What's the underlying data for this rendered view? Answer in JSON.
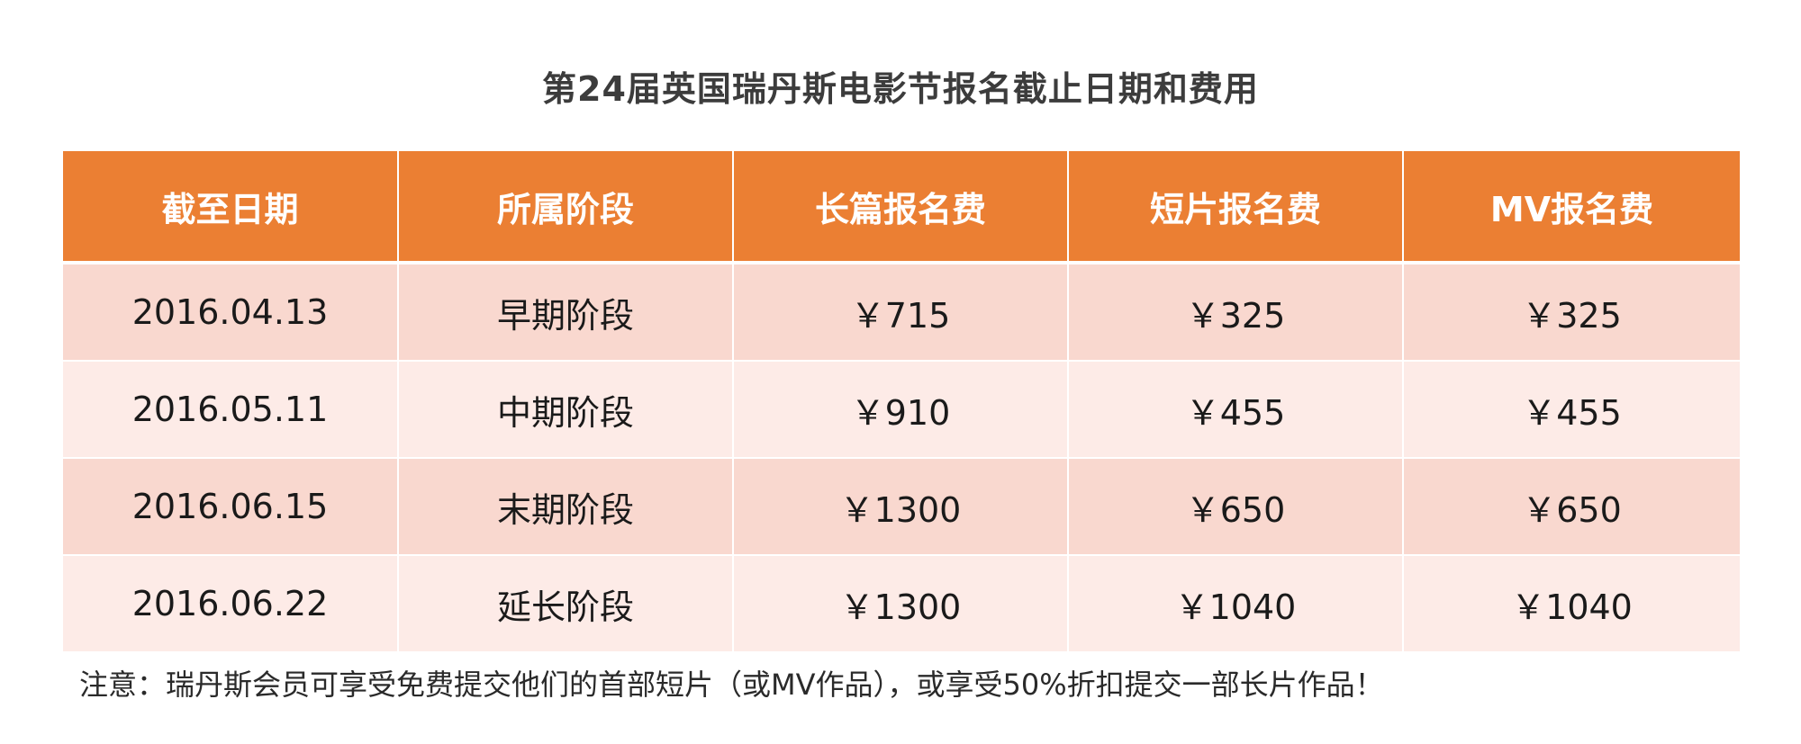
{
  "title": "第24届英国瑞丹斯电影节报名截止日期和费用",
  "table": {
    "headers": [
      "截至日期",
      "所属阶段",
      "长篇报名费",
      "短片报名费",
      "MV报名费"
    ],
    "rows": [
      [
        "2016.04.13",
        "早期阶段",
        "￥715",
        "￥325",
        "￥325"
      ],
      [
        "2016.05.11",
        "中期阶段",
        "￥910",
        "￥455",
        "￥455"
      ],
      [
        "2016.06.15",
        "末期阶段",
        "￥1300",
        "￥650",
        "￥650"
      ],
      [
        "2016.06.22",
        "延长阶段",
        "￥1300",
        "￥1040",
        "￥1040"
      ]
    ]
  },
  "note": "注意：瑞丹斯会员可享受免费提交他们的首部短片（或MV作品），或享受50%折扣提交一部长片作品！",
  "colors": {
    "header_bg": "#eb7f33",
    "row_odd_bg": "#f9d8cf",
    "row_even_bg": "#fdebe7"
  }
}
